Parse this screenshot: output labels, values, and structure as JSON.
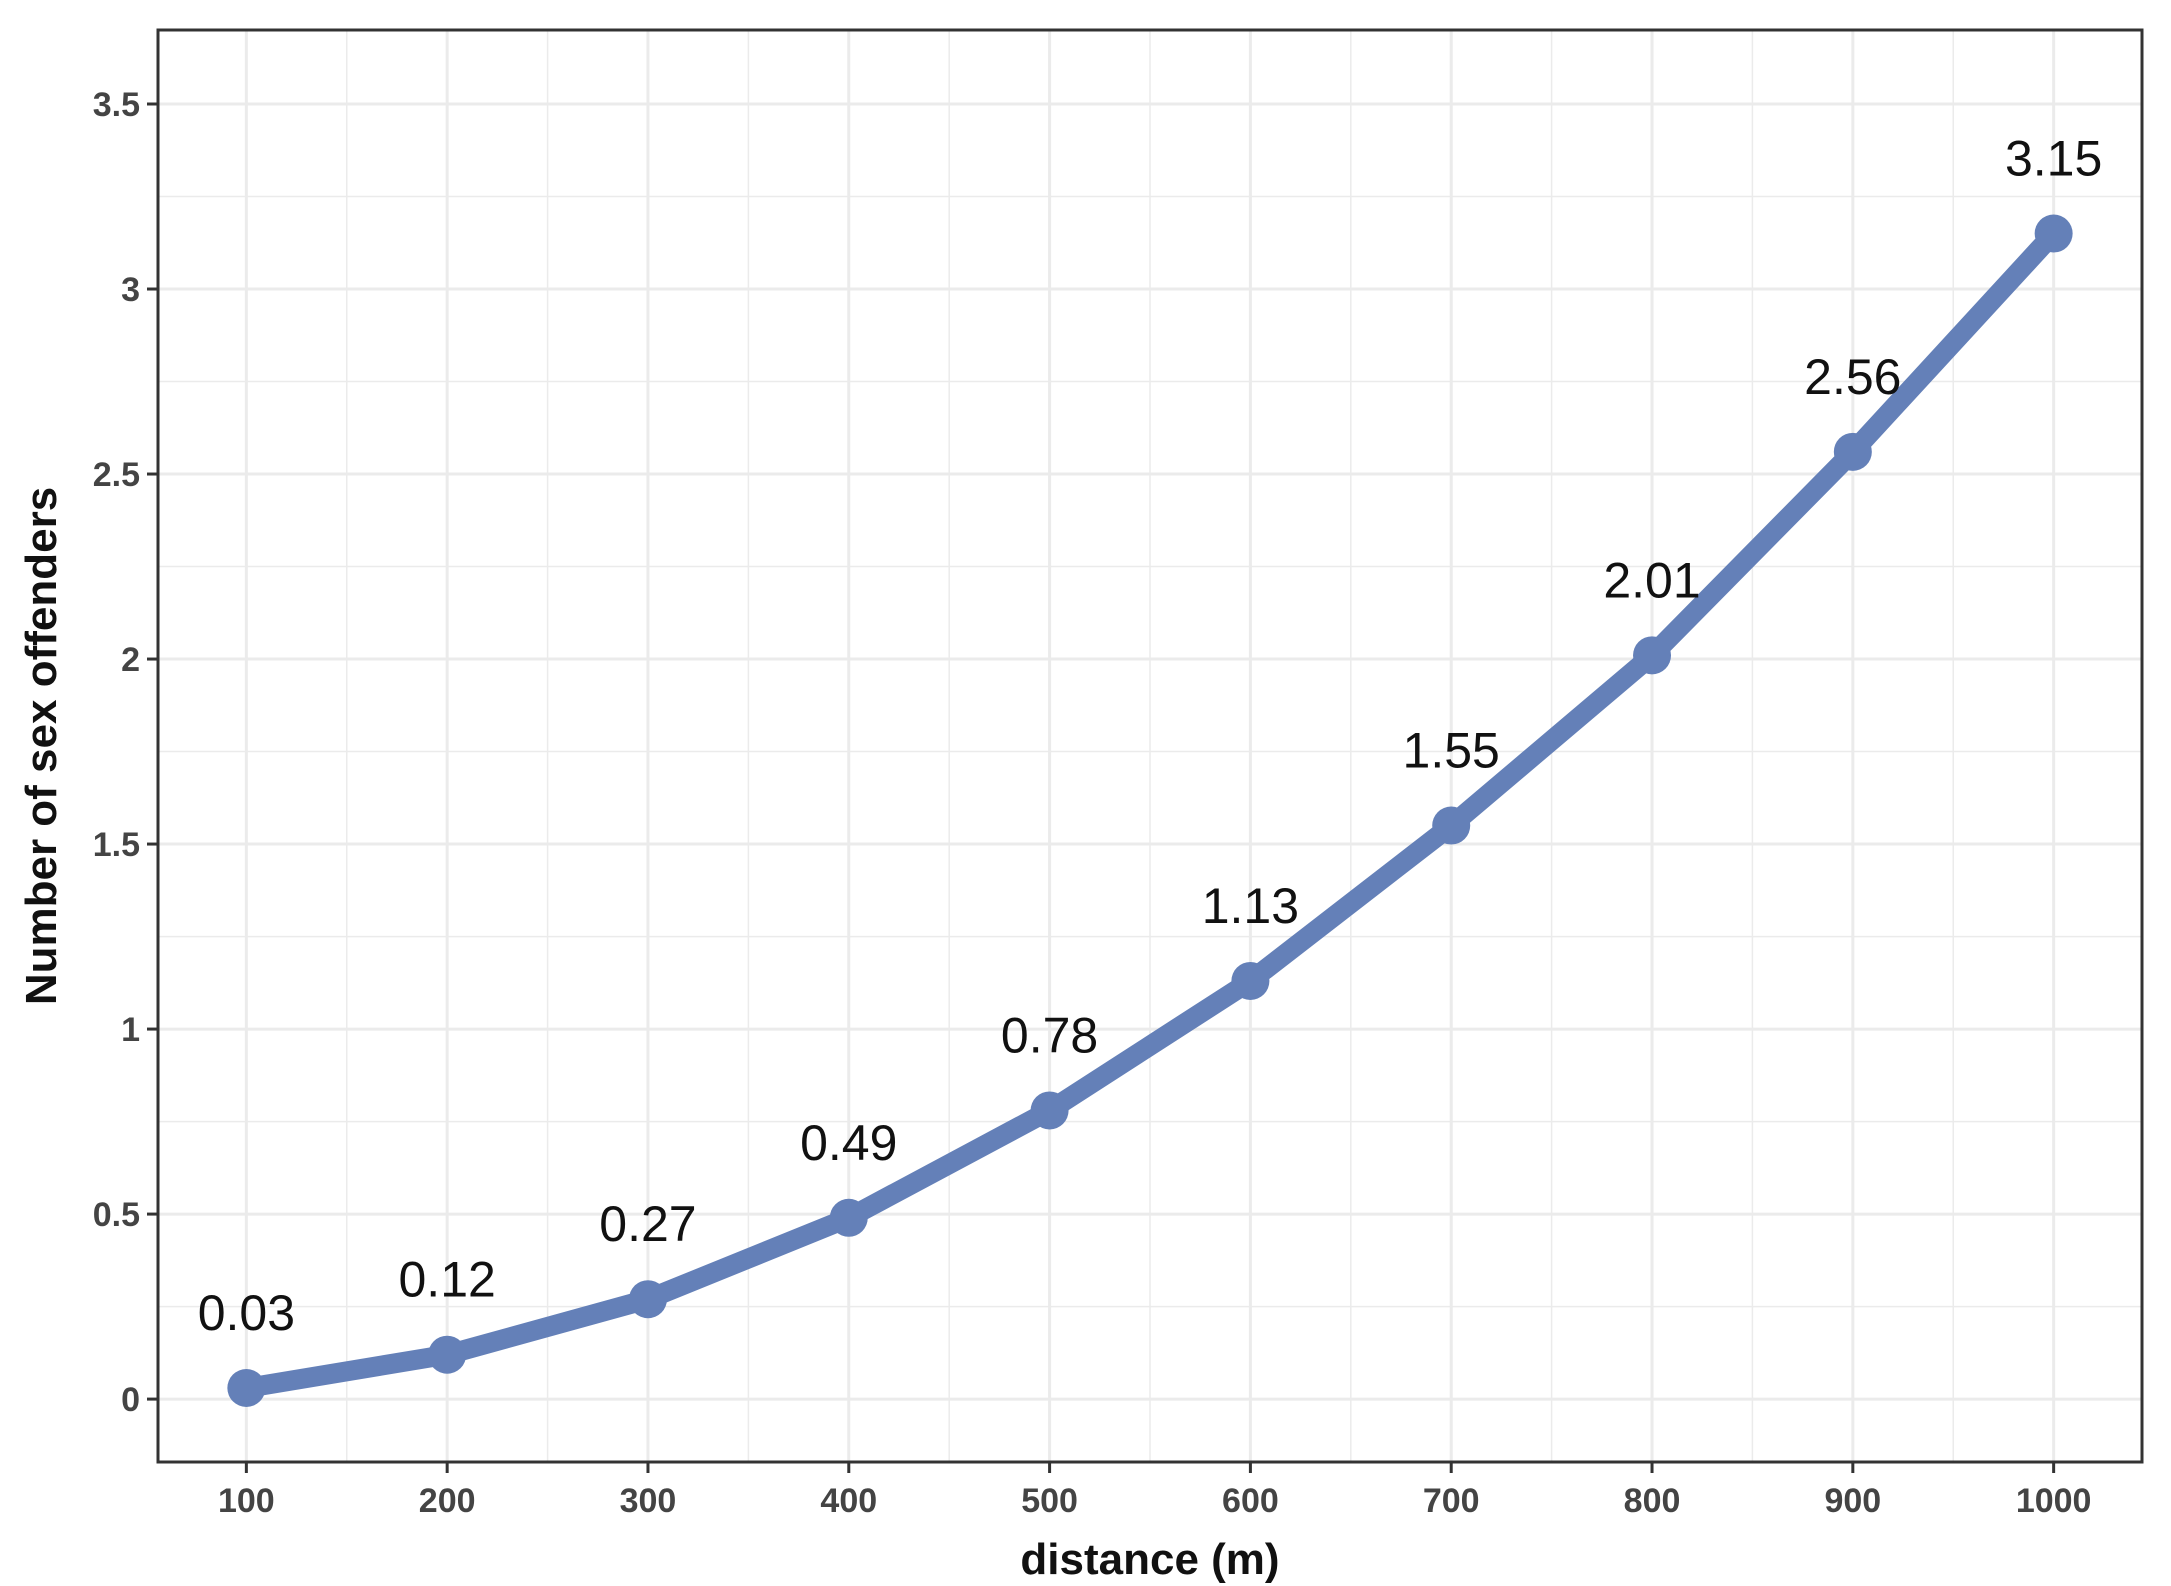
{
  "chart_data": {
    "type": "line",
    "title": "",
    "xlabel": "distance (m)",
    "ylabel": "Number of sex offenders",
    "x": [
      100,
      200,
      300,
      400,
      500,
      600,
      700,
      800,
      900,
      1000
    ],
    "y": [
      0.03,
      0.12,
      0.27,
      0.49,
      0.78,
      1.13,
      1.55,
      2.01,
      2.56,
      3.15
    ],
    "data_labels": [
      "0.03",
      "0.12",
      "0.27",
      "0.49",
      "0.78",
      "1.13",
      "1.55",
      "2.01",
      "2.56",
      "3.15"
    ],
    "xticks": [
      100,
      200,
      300,
      400,
      500,
      600,
      700,
      800,
      900,
      1000
    ],
    "xtick_labels": [
      "100",
      "200",
      "300",
      "400",
      "500",
      "600",
      "700",
      "800",
      "900",
      "1000"
    ],
    "yticks": [
      0,
      0.5,
      1,
      1.5,
      2,
      2.5,
      3,
      3.5
    ],
    "ytick_labels": [
      "0",
      "0.5",
      "1",
      "1.5",
      "2",
      "2.5",
      "3",
      "3.5"
    ],
    "xlim": [
      56,
      1044
    ],
    "ylim": [
      -0.17,
      3.7
    ],
    "grid": true,
    "legend": "none",
    "series_color": "#6480B8",
    "grid_color": "#EBEBEB",
    "panel_border_color": "#333333"
  }
}
